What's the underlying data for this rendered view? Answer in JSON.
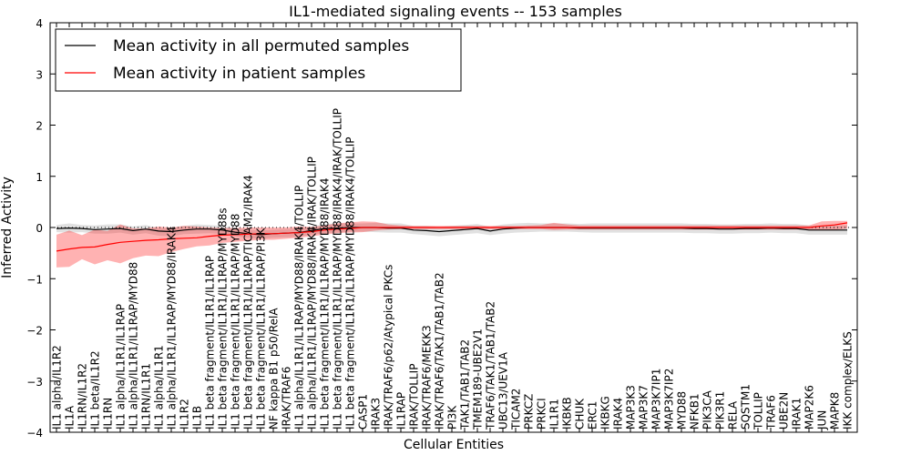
{
  "chart_data": {
    "type": "line",
    "title": "IL1-mediated signaling events -- 153 samples",
    "xlabel": "Cellular Entities",
    "ylabel": "Inferred Activity",
    "ylim": [
      -4,
      4
    ],
    "yticks": [
      -4,
      -3,
      -2,
      -1,
      0,
      1,
      2,
      3,
      4
    ],
    "ytick_labels": [
      "−4",
      "−3",
      "−2",
      "−1",
      "0",
      "1",
      "2",
      "3",
      "4"
    ],
    "legend_position": "top-left",
    "categories": [
      "IL1 alpha/IL1R2",
      "IL1A",
      "IL1RN/IL1R2",
      "IL1 beta/IL1R2",
      "IL1RN",
      "IL1 alpha/IL1R1/IL1RAP",
      "IL1 alpha/IL1R1/IL1RAP/MYD88",
      "IL1RN/IL1R1",
      "IL1 alpha/IL1R1",
      "IL1 alpha/IL1R1/IL1RAP/MYD88/IRAK4",
      "IL1R2",
      "IL1B",
      "IL1 beta fragment/IL1R1/IL1RAP",
      "IL1 beta fragment/IL1R1/IL1RAP/MYD88s",
      "IL1 beta fragment/IL1R1/IL1RAP/MYD88",
      "IL1 beta fragment/IL1R1/IL1RAP/TICAM2/IRAK4",
      "IL1 beta fragment/IL1R1/IL1RAP/PI3K",
      "NF kappa B1 p50/RelA",
      "IRAK/TRAF6",
      "IL1 alpha/IL1R1/IL1RAP/MYD88/IRAK4/TOLLIP",
      "IL1 alpha/IL1R1/IL1RAP/MYD88/IRAK4/IRAK/TOLLIP",
      "IL1 beta fragment/IL1R1/IL1RAP/MYD88/IRAK4",
      "IL1 beta fragment/IL1R1/IL1RAP/MYD88/IRAK4/IRAK/TOLLIP",
      "IL1 beta fragment/IL1R1/IL1RAP/MYD88/IRAK4/TOLLIP",
      "CASP1",
      "IRAK3",
      "IRAK/TRAF6/p62/Atypical PKCs",
      "IL1RAP",
      "IRAK/TOLLIP",
      "IRAK/TRAF6/MEKK3",
      "IRAK/TRAF6/TAK1/TAB1/TAB2",
      "PI3K",
      "TAK1/TAB1/TAB2",
      "TMEM189-UBE2V1",
      "TRAF6/TAK1/TAB1/TAB2",
      "UBC13/UEV1A",
      "TICAM2",
      "PRKCZ",
      "PRKCI",
      "IL1R1",
      "IKBKB",
      "CHUK",
      "ERC1",
      "IKBKG",
      "IRAK4",
      "MAP3K3",
      "MAP3K7",
      "MAP3K7IP1",
      "MAP3K7IP2",
      "MYD88",
      "NFKB1",
      "PIK3CA",
      "PIK3R1",
      "RELA",
      "SQSTM1",
      "TOLLIP",
      "TRAF6",
      "UBE2N",
      "IRAK1",
      "MAP2K6",
      "JUN",
      "MAPK8",
      "IKK complex/ELKS"
    ],
    "series": [
      {
        "name": "Mean activity in all permuted samples",
        "color": "#000000",
        "values": [
          -0.02,
          -0.01,
          -0.02,
          -0.04,
          -0.03,
          -0.02,
          -0.06,
          -0.03,
          -0.07,
          -0.08,
          -0.05,
          -0.03,
          -0.03,
          -0.05,
          -0.09,
          -0.12,
          -0.14,
          -0.12,
          -0.11,
          -0.1,
          -0.06,
          -0.02,
          -0.01,
          0.0,
          0.0,
          0.0,
          -0.01,
          -0.01,
          -0.05,
          -0.06,
          -0.08,
          -0.06,
          -0.04,
          -0.02,
          -0.07,
          -0.03,
          -0.01,
          0.0,
          0.0,
          0.0,
          0.0,
          -0.01,
          -0.01,
          -0.01,
          -0.01,
          -0.01,
          -0.01,
          -0.01,
          -0.01,
          -0.01,
          -0.02,
          -0.02,
          -0.03,
          -0.03,
          -0.02,
          -0.02,
          -0.01,
          -0.02,
          -0.02,
          -0.05,
          -0.05,
          -0.05,
          -0.05
        ],
        "band_lower": [
          -0.09,
          -0.1,
          -0.09,
          -0.12,
          -0.12,
          -0.1,
          -0.14,
          -0.11,
          -0.16,
          -0.17,
          -0.13,
          -0.12,
          -0.11,
          -0.13,
          -0.17,
          -0.2,
          -0.22,
          -0.2,
          -0.19,
          -0.18,
          -0.14,
          -0.11,
          -0.1,
          -0.08,
          -0.08,
          -0.09,
          -0.1,
          -0.1,
          -0.13,
          -0.15,
          -0.17,
          -0.15,
          -0.13,
          -0.11,
          -0.15,
          -0.12,
          -0.1,
          -0.09,
          -0.08,
          -0.08,
          -0.08,
          -0.09,
          -0.1,
          -0.1,
          -0.1,
          -0.1,
          -0.1,
          -0.1,
          -0.1,
          -0.1,
          -0.11,
          -0.11,
          -0.12,
          -0.12,
          -0.11,
          -0.11,
          -0.1,
          -0.11,
          -0.11,
          -0.14,
          -0.14,
          -0.14,
          -0.14
        ],
        "band_upper": [
          0.05,
          0.08,
          0.05,
          0.04,
          0.06,
          0.06,
          0.02,
          0.05,
          -0.01,
          -0.01,
          0.03,
          0.06,
          0.05,
          0.03,
          -0.01,
          -0.04,
          -0.06,
          -0.04,
          -0.03,
          -0.02,
          0.02,
          0.07,
          0.08,
          0.08,
          0.08,
          0.09,
          0.08,
          0.08,
          0.03,
          0.03,
          0.01,
          0.03,
          0.05,
          0.07,
          0.01,
          0.06,
          0.08,
          0.09,
          0.08,
          0.08,
          0.08,
          0.07,
          0.08,
          0.08,
          0.08,
          0.08,
          0.08,
          0.08,
          0.08,
          0.08,
          0.07,
          0.07,
          0.06,
          0.06,
          0.07,
          0.07,
          0.08,
          0.07,
          0.07,
          0.04,
          0.04,
          0.04,
          0.04
        ]
      },
      {
        "name": "Mean activity in patient samples",
        "color": "#ff0000",
        "values": [
          -0.46,
          -0.42,
          -0.39,
          -0.38,
          -0.33,
          -0.29,
          -0.27,
          -0.25,
          -0.24,
          -0.22,
          -0.21,
          -0.2,
          -0.17,
          -0.15,
          -0.14,
          -0.13,
          -0.12,
          -0.12,
          -0.11,
          -0.1,
          -0.08,
          -0.05,
          -0.03,
          -0.02,
          0.0,
          0.0,
          0.0,
          0.0,
          0.0,
          0.0,
          0.0,
          0.0,
          0.0,
          0.0,
          0.0,
          0.0,
          0.0,
          0.0,
          0.0,
          0.0,
          0.0,
          0.0,
          0.0,
          0.0,
          0.0,
          0.0,
          0.0,
          0.0,
          0.0,
          0.0,
          0.0,
          0.0,
          0.0,
          0.0,
          0.0,
          0.0,
          0.0,
          0.0,
          0.0,
          0.0,
          0.03,
          0.05,
          0.09
        ],
        "band_lower": [
          -0.78,
          -0.77,
          -0.62,
          -0.72,
          -0.64,
          -0.7,
          -0.6,
          -0.55,
          -0.56,
          -0.48,
          -0.42,
          -0.37,
          -0.35,
          -0.3,
          -0.28,
          -0.26,
          -0.24,
          -0.24,
          -0.22,
          -0.2,
          -0.17,
          -0.14,
          -0.11,
          -0.1,
          -0.09,
          -0.06,
          -0.04,
          -0.03,
          -0.03,
          -0.03,
          -0.03,
          -0.03,
          -0.03,
          -0.03,
          -0.03,
          -0.03,
          -0.03,
          -0.03,
          -0.03,
          -0.05,
          -0.04,
          -0.04,
          -0.04,
          -0.04,
          -0.04,
          -0.04,
          -0.04,
          -0.04,
          -0.04,
          -0.04,
          -0.04,
          -0.04,
          -0.04,
          -0.04,
          -0.04,
          -0.04,
          -0.04,
          -0.04,
          -0.04,
          -0.04,
          -0.05,
          -0.05,
          -0.02
        ],
        "band_upper": [
          -0.14,
          -0.06,
          -0.15,
          -0.04,
          -0.07,
          0.06,
          -0.02,
          -0.02,
          0.02,
          0.0,
          0.03,
          0.02,
          0.0,
          -0.01,
          -0.01,
          0.0,
          0.0,
          0.0,
          0.0,
          0.02,
          0.01,
          0.04,
          0.08,
          0.1,
          0.12,
          0.11,
          0.06,
          0.04,
          0.03,
          0.03,
          0.03,
          0.03,
          0.03,
          0.03,
          0.03,
          0.03,
          0.03,
          0.04,
          0.05,
          0.09,
          0.06,
          0.04,
          0.04,
          0.04,
          0.04,
          0.04,
          0.04,
          0.04,
          0.04,
          0.04,
          0.04,
          0.04,
          0.04,
          0.04,
          0.04,
          0.04,
          0.04,
          0.04,
          0.04,
          0.04,
          0.12,
          0.13,
          0.13
        ]
      }
    ]
  }
}
